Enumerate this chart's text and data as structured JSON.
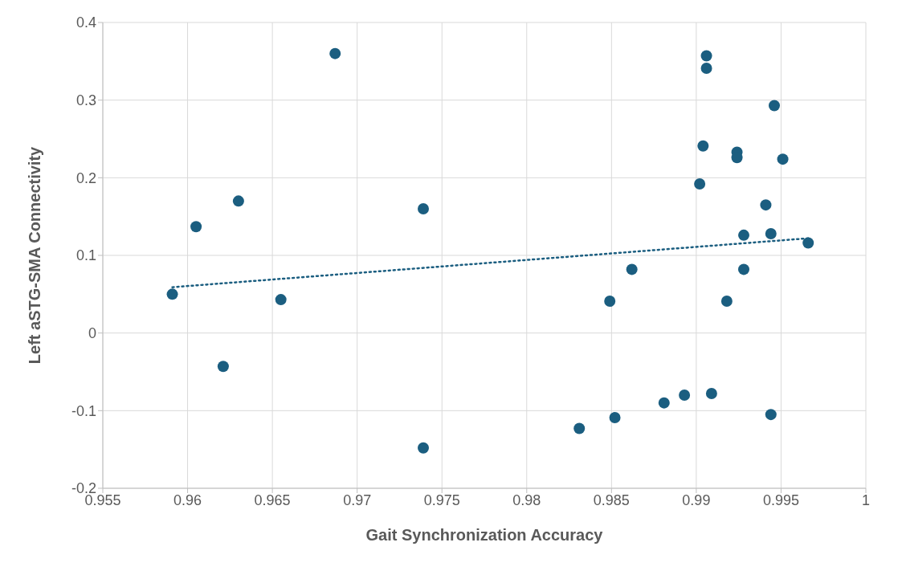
{
  "chart_data": {
    "type": "scatter",
    "xlabel": "Gait Synchronization Accuracy",
    "ylabel": "Left aSTG-SMA Connectivity",
    "xlim": [
      0.955,
      1
    ],
    "xticks": [
      0.955,
      0.96,
      0.965,
      0.97,
      0.975,
      0.98,
      0.985,
      0.99,
      0.995,
      1
    ],
    "ylim": [
      -0.2,
      0.4
    ],
    "yticks": [
      -0.2,
      -0.1,
      0,
      0.1,
      0.2,
      0.3,
      0.4
    ],
    "grid": true,
    "marker": "circle",
    "series": [
      {
        "color": "#1b5e80",
        "x": [
          0.9591,
          0.9605,
          0.9621,
          0.963,
          0.9655,
          0.9687,
          0.9739,
          0.9739,
          0.9831,
          0.9849,
          0.9852,
          0.9862,
          0.9881,
          0.9893,
          0.9902,
          0.9904,
          0.9906,
          0.9906,
          0.9909,
          0.9918,
          0.9924,
          0.9924,
          0.9928,
          0.9928,
          0.9941,
          0.9944,
          0.9944,
          0.9946,
          0.9951,
          0.9966
        ],
        "values": [
          0.05,
          0.137,
          -0.043,
          0.17,
          0.043,
          0.36,
          0.16,
          -0.148,
          -0.123,
          0.041,
          -0.109,
          0.082,
          -0.09,
          -0.08,
          0.192,
          0.241,
          0.357,
          0.341,
          -0.078,
          0.041,
          0.233,
          0.226,
          0.126,
          0.082,
          0.165,
          0.128,
          -0.105,
          0.293,
          0.224,
          0.116
        ]
      },
      {
        "type": "line",
        "color": "#1b5e80",
        "line_style": "dotted",
        "marker": "none",
        "x": [
          0.9591,
          0.9966
        ],
        "values": [
          0.059,
          0.122
        ]
      }
    ]
  }
}
